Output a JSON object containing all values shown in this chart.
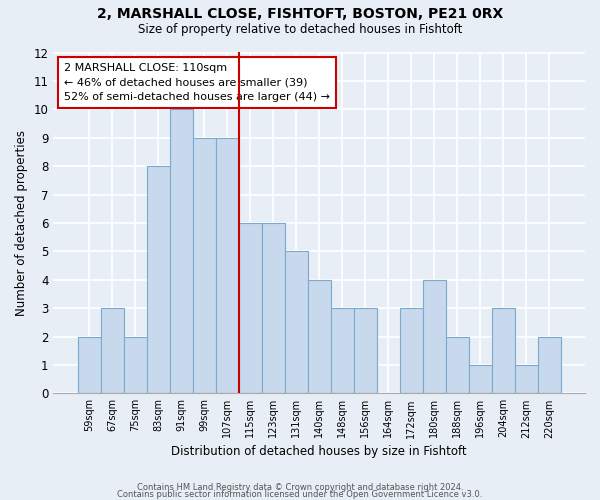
{
  "title1": "2, MARSHALL CLOSE, FISHTOFT, BOSTON, PE21 0RX",
  "title2": "Size of property relative to detached houses in Fishtoft",
  "xlabel": "Distribution of detached houses by size in Fishtoft",
  "ylabel": "Number of detached properties",
  "bar_labels": [
    "59sqm",
    "67sqm",
    "75sqm",
    "83sqm",
    "91sqm",
    "99sqm",
    "107sqm",
    "115sqm",
    "123sqm",
    "131sqm",
    "140sqm",
    "148sqm",
    "156sqm",
    "164sqm",
    "172sqm",
    "180sqm",
    "188sqm",
    "196sqm",
    "204sqm",
    "212sqm",
    "220sqm"
  ],
  "bar_values": [
    2,
    3,
    2,
    8,
    10,
    9,
    9,
    6,
    6,
    5,
    4,
    3,
    3,
    0,
    3,
    4,
    2,
    1,
    3,
    1,
    2
  ],
  "bar_color": "#c8d8ed",
  "bar_edgecolor": "#7aaacc",
  "ylim": [
    0,
    12
  ],
  "yticks": [
    0,
    1,
    2,
    3,
    4,
    5,
    6,
    7,
    8,
    9,
    10,
    11,
    12
  ],
  "vline_x": 6.5,
  "vline_color": "#cc0000",
  "annotation_title": "2 MARSHALL CLOSE: 110sqm",
  "annotation_line1": "← 46% of detached houses are smaller (39)",
  "annotation_line2": "52% of semi-detached houses are larger (44) →",
  "annotation_box_color": "#ffffff",
  "annotation_box_edgecolor": "#cc0000",
  "footer1": "Contains HM Land Registry data © Crown copyright and database right 2024.",
  "footer2": "Contains public sector information licensed under the Open Government Licence v3.0.",
  "background_color": "#e8eef5",
  "grid_color": "#ffffff",
  "spine_color": "#aaaaaa"
}
